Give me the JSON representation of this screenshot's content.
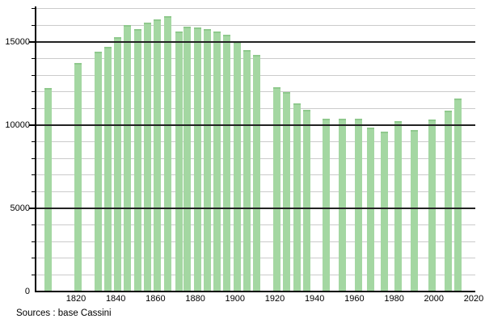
{
  "chart_data": {
    "type": "bar",
    "title": "",
    "xlabel": "",
    "ylabel": "",
    "x": [
      1806,
      1821,
      1831,
      1836,
      1841,
      1846,
      1851,
      1856,
      1861,
      1866,
      1872,
      1876,
      1881,
      1886,
      1891,
      1896,
      1901,
      1906,
      1911,
      1921,
      1926,
      1931,
      1936,
      1946,
      1954,
      1962,
      1968,
      1975,
      1982,
      1990,
      1999,
      2007,
      2012
    ],
    "values": [
      12250,
      13750,
      14400,
      14700,
      15300,
      16000,
      15800,
      16150,
      16350,
      16550,
      15650,
      15900,
      15850,
      15800,
      15650,
      15450,
      15000,
      14500,
      14200,
      12300,
      12000,
      11300,
      10900,
      10400,
      10400,
      10400,
      9850,
      9600,
      10250,
      9700,
      10350,
      10850,
      11600
    ],
    "x_axis": {
      "tick_labels": [
        "1820",
        "1840",
        "1860",
        "1880",
        "1900",
        "1920",
        "1940",
        "1960",
        "1980",
        "2000",
        "2020"
      ],
      "tick_years": [
        1820,
        1840,
        1860,
        1880,
        1900,
        1920,
        1940,
        1960,
        1980,
        2000,
        2020
      ]
    },
    "y_axis": {
      "min": 0,
      "max": 17000,
      "minor_step": 1000,
      "major_step": 5000,
      "major_tick_labels": [
        "0",
        "5000",
        "10000",
        "15000"
      ],
      "major_tick_values": [
        0,
        5000,
        10000,
        15000
      ]
    },
    "grid": "minor horizontal light-gray every 1000, major dark every 5000, drawn over bars",
    "legend_position": "none",
    "source": "Sources : base Cassini",
    "colors": {
      "bar_fill": "#a4d7a2",
      "bar_cap": "#8fc98d",
      "minor_grid": "#cbcbcb",
      "major_grid": "#222222",
      "axis": "#000000",
      "background": "#ffffff"
    }
  }
}
